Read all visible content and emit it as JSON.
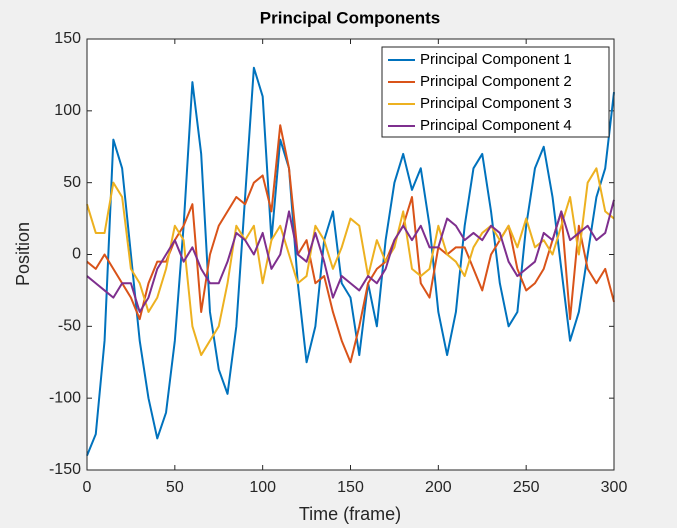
{
  "chart_data": {
    "type": "line",
    "title": "Principal Components",
    "x_label": "Time (frame)",
    "y_label": "Position",
    "x": [
      0,
      5,
      10,
      15,
      20,
      25,
      30,
      35,
      40,
      45,
      50,
      55,
      60,
      65,
      70,
      75,
      80,
      85,
      90,
      95,
      100,
      105,
      110,
      115,
      120,
      125,
      130,
      135,
      140,
      145,
      150,
      155,
      160,
      165,
      170,
      175,
      180,
      185,
      190,
      195,
      200,
      205,
      210,
      215,
      220,
      225,
      230,
      235,
      240,
      245,
      250,
      255,
      260,
      265,
      270,
      275,
      280,
      285,
      290,
      295,
      300
    ],
    "series": [
      {
        "name": "Principal Component 1",
        "color": "#0072BD",
        "values": [
          -140,
          -125,
          -60,
          80,
          60,
          0,
          -60,
          -100,
          -128,
          -110,
          -60,
          20,
          120,
          70,
          -40,
          -80,
          -97,
          -50,
          40,
          130,
          110,
          10,
          80,
          60,
          -20,
          -75,
          -50,
          10,
          30,
          -20,
          -30,
          -70,
          -20,
          -50,
          10,
          50,
          70,
          45,
          60,
          20,
          -40,
          -70,
          -40,
          20,
          60,
          70,
          30,
          -20,
          -50,
          -40,
          20,
          60,
          75,
          40,
          -10,
          -60,
          -40,
          0,
          40,
          60,
          113
        ]
      },
      {
        "name": "Principal Component 2",
        "color": "#D95319",
        "values": [
          -5,
          -10,
          0,
          -10,
          -20,
          -30,
          -45,
          -20,
          -5,
          -5,
          10,
          20,
          35,
          -40,
          0,
          20,
          30,
          40,
          35,
          50,
          55,
          30,
          90,
          60,
          0,
          10,
          -20,
          -15,
          -40,
          -60,
          -75,
          -50,
          -20,
          -10,
          -5,
          10,
          20,
          40,
          -20,
          -30,
          5,
          0,
          5,
          5,
          -10,
          -25,
          0,
          10,
          20,
          -10,
          -25,
          -20,
          -10,
          10,
          30,
          -45,
          20,
          -10,
          -20,
          -10,
          -33
        ]
      },
      {
        "name": "Principal Component 3",
        "color": "#EDB120",
        "values": [
          35,
          15,
          15,
          50,
          40,
          -10,
          -20,
          -40,
          -30,
          -10,
          20,
          10,
          -50,
          -70,
          -60,
          -50,
          -20,
          20,
          10,
          20,
          -20,
          10,
          20,
          0,
          -20,
          -15,
          20,
          10,
          -10,
          5,
          25,
          20,
          -15,
          10,
          -5,
          5,
          30,
          -10,
          -15,
          -10,
          20,
          0,
          -5,
          -15,
          5,
          15,
          20,
          10,
          20,
          5,
          25,
          5,
          10,
          0,
          20,
          40,
          0,
          50,
          60,
          30,
          25
        ]
      },
      {
        "name": "Principal Component 4",
        "color": "#7E2F8E",
        "values": [
          -15,
          -20,
          -25,
          -30,
          -20,
          -20,
          -40,
          -30,
          -10,
          0,
          10,
          -5,
          5,
          -10,
          -20,
          -20,
          -5,
          15,
          10,
          0,
          15,
          -10,
          0,
          30,
          0,
          -5,
          15,
          -5,
          -30,
          -15,
          -20,
          -25,
          -15,
          -20,
          -10,
          10,
          20,
          10,
          20,
          5,
          5,
          25,
          20,
          10,
          15,
          10,
          20,
          15,
          -5,
          -15,
          -10,
          -5,
          15,
          10,
          30,
          10,
          15,
          20,
          10,
          15,
          38
        ]
      }
    ],
    "xlim": [
      0,
      300
    ],
    "xticks": [
      0,
      50,
      100,
      150,
      200,
      250,
      300
    ],
    "ylim": [
      -150,
      150
    ],
    "yticks": [
      -150,
      -100,
      -50,
      0,
      50,
      100,
      150
    ],
    "grid": false,
    "legend_position": "top-right"
  }
}
